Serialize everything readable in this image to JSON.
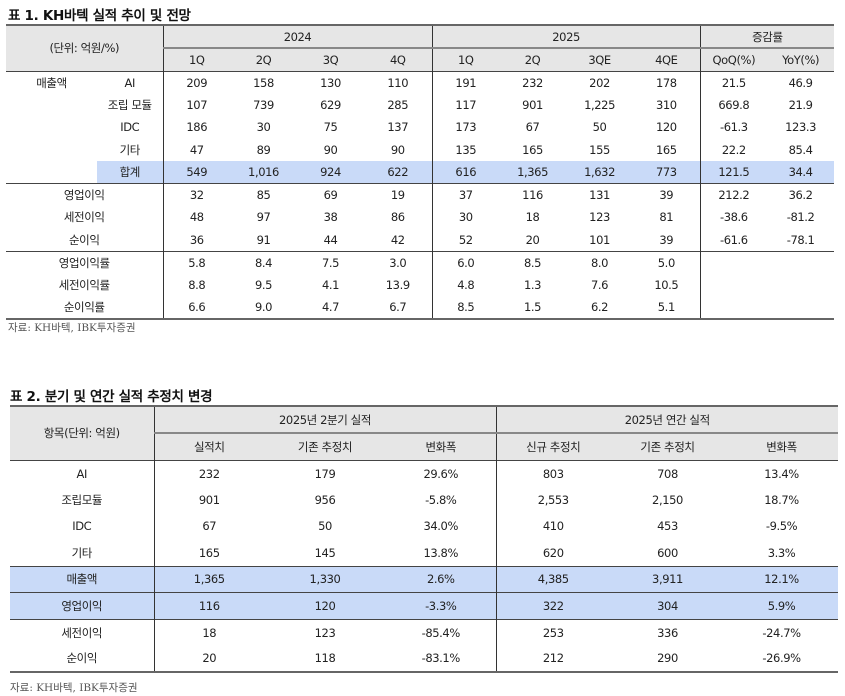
{
  "table1": {
    "title": "표 1. KH바텍 실적 추이 및 전망",
    "unit_label": "(단위: 억원/%)",
    "groups": [
      "2024",
      "2025",
      "증감률"
    ],
    "columns": [
      "1Q",
      "2Q",
      "3Q",
      "4Q",
      "1Q",
      "2Q",
      "3QE",
      "4QE",
      "QoQ(%)",
      "YoY(%)"
    ],
    "rows": [
      {
        "cat": "매출액",
        "sub": "AI",
        "values": [
          "209",
          "158",
          "130",
          "110",
          "191",
          "232",
          "202",
          "178",
          "21.5",
          "46.9"
        ]
      },
      {
        "cat": "",
        "sub": "조립 모듈",
        "values": [
          "107",
          "739",
          "629",
          "285",
          "117",
          "901",
          "1,225",
          "310",
          "669.8",
          "21.9"
        ]
      },
      {
        "cat": "",
        "sub": "IDC",
        "values": [
          "186",
          "30",
          "75",
          "137",
          "173",
          "67",
          "50",
          "120",
          "-61.3",
          "123.3"
        ]
      },
      {
        "cat": "",
        "sub": "기타",
        "values": [
          "47",
          "89",
          "90",
          "90",
          "135",
          "165",
          "155",
          "165",
          "22.2",
          "85.4"
        ]
      },
      {
        "cat": "",
        "sub": "합계",
        "values": [
          "549",
          "1,016",
          "924",
          "622",
          "616",
          "1,365",
          "1,632",
          "773",
          "121.5",
          "34.4"
        ]
      },
      {
        "cat": "영업이익",
        "sub": "",
        "values": [
          "32",
          "85",
          "69",
          "19",
          "37",
          "116",
          "131",
          "39",
          "212.2",
          "36.2"
        ]
      },
      {
        "cat": "세전이익",
        "sub": "",
        "values": [
          "48",
          "97",
          "38",
          "86",
          "30",
          "18",
          "123",
          "81",
          "-38.6",
          "-81.2"
        ]
      },
      {
        "cat": "순이익",
        "sub": "",
        "values": [
          "36",
          "91",
          "44",
          "42",
          "52",
          "20",
          "101",
          "39",
          "-61.6",
          "-78.1"
        ]
      },
      {
        "cat": "영업이익률",
        "sub": "",
        "values": [
          "5.8",
          "8.4",
          "7.5",
          "3.0",
          "6.0",
          "8.5",
          "8.0",
          "5.0",
          "",
          ""
        ]
      },
      {
        "cat": "세전이익률",
        "sub": "",
        "values": [
          "8.8",
          "9.5",
          "4.1",
          "13.9",
          "4.8",
          "1.3",
          "7.6",
          "10.5",
          "",
          ""
        ]
      },
      {
        "cat": "순이익률",
        "sub": "",
        "values": [
          "6.6",
          "9.0",
          "4.7",
          "6.7",
          "8.5",
          "1.5",
          "6.2",
          "5.1",
          "",
          ""
        ]
      }
    ],
    "source": "자료: KH바텍, IBK투자증권"
  },
  "table2": {
    "title": "표 2. 분기 및 연간 실적 추정치 변경",
    "unit_label": "항목(단위: 억원)",
    "groups": [
      "2025년 2분기 실적",
      "2025년 연간 실적"
    ],
    "columns": [
      "실적치",
      "기존 추정치",
      "변화폭",
      "신규 추정치",
      "기존 추정치",
      "변화폭"
    ],
    "rows": [
      {
        "item": "AI",
        "values": [
          "232",
          "179",
          "29.6%",
          "803",
          "708",
          "13.4%"
        ]
      },
      {
        "item": "조립모듈",
        "values": [
          "901",
          "956",
          "-5.8%",
          "2,553",
          "2,150",
          "18.7%"
        ]
      },
      {
        "item": "IDC",
        "values": [
          "67",
          "50",
          "34.0%",
          "410",
          "453",
          "-9.5%"
        ]
      },
      {
        "item": "기타",
        "values": [
          "165",
          "145",
          "13.8%",
          "620",
          "600",
          "3.3%"
        ]
      },
      {
        "item": "매출액",
        "values": [
          "1,365",
          "1,330",
          "2.6%",
          "4,385",
          "3,911",
          "12.1%"
        ]
      },
      {
        "item": "영업이익",
        "values": [
          "116",
          "120",
          "-3.3%",
          "322",
          "304",
          "5.9%"
        ]
      },
      {
        "item": "세전이익",
        "values": [
          "18",
          "123",
          "-85.4%",
          "253",
          "336",
          "-24.7%"
        ]
      },
      {
        "item": "순이익",
        "values": [
          "20",
          "118",
          "-83.1%",
          "212",
          "290",
          "-26.9%"
        ]
      }
    ],
    "source": "자료: KH바텍, IBK투자증권"
  },
  "colors": {
    "header_bg": "#e6e6e6",
    "highlight_bg": "#c9daf8"
  }
}
